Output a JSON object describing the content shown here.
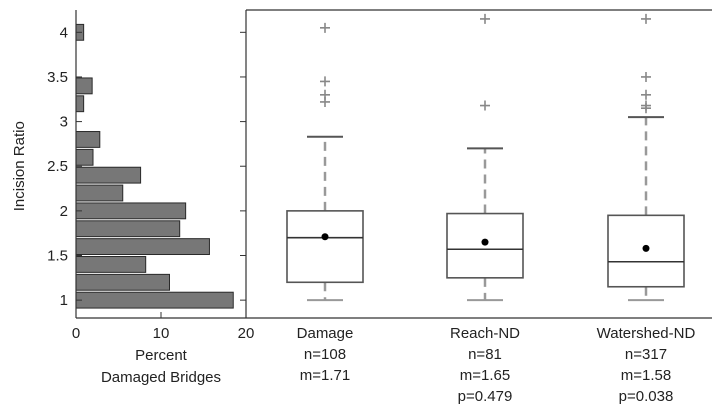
{
  "chart_data": [
    {
      "type": "bar",
      "orientation": "horizontal",
      "title": "",
      "xlabel_lines": [
        "Percent",
        "Damaged Bridges"
      ],
      "ylabel": "Incision Ratio",
      "xlim": [
        0,
        20
      ],
      "ylim": [
        0.8,
        4.25
      ],
      "xticks": [
        0,
        10,
        20
      ],
      "yticks": [
        1,
        1.5,
        2,
        2.5,
        3,
        3.5,
        4
      ],
      "ytick_labels": [
        "1",
        "1.5",
        "2",
        "2.5",
        "3",
        "3.5",
        "4"
      ],
      "bin_width": 0.2,
      "bins": [
        {
          "center": 1.0,
          "value": 18.5
        },
        {
          "center": 1.2,
          "value": 11.0
        },
        {
          "center": 1.4,
          "value": 8.2
        },
        {
          "center": 1.6,
          "value": 15.7
        },
        {
          "center": 1.8,
          "value": 12.2
        },
        {
          "center": 2.0,
          "value": 12.9
        },
        {
          "center": 2.2,
          "value": 5.5
        },
        {
          "center": 2.4,
          "value": 7.6
        },
        {
          "center": 2.6,
          "value": 2.0
        },
        {
          "center": 2.8,
          "value": 2.8
        },
        {
          "center": 3.2,
          "value": 0.9
        },
        {
          "center": 3.4,
          "value": 1.9
        },
        {
          "center": 4.0,
          "value": 0.9
        }
      ],
      "bar_color": "#777777"
    },
    {
      "type": "boxplot",
      "title": "",
      "ylim": [
        0.8,
        4.25
      ],
      "groups": [
        {
          "label_lines": [
            "Damage",
            "n=108",
            "m=1.71"
          ],
          "whisker_low": 1.0,
          "q1": 1.2,
          "median": 1.7,
          "q3": 2.0,
          "whisker_high": 2.83,
          "mean": 1.71,
          "outliers": [
            3.22,
            3.3,
            3.45,
            4.05
          ]
        },
        {
          "label_lines": [
            "Reach-ND",
            "n=81",
            "m=1.65",
            "p=0.479"
          ],
          "whisker_low": 1.0,
          "q1": 1.25,
          "median": 1.57,
          "q3": 1.97,
          "whisker_high": 2.7,
          "mean": 1.65,
          "outliers": [
            3.18,
            4.15
          ]
        },
        {
          "label_lines": [
            "Watershed-ND",
            "n=317",
            "m=1.58",
            "p=0.038"
          ],
          "whisker_low": 1.0,
          "q1": 1.15,
          "median": 1.43,
          "q3": 1.95,
          "whisker_high": 3.05,
          "mean": 1.58,
          "outliers": [
            3.15,
            3.18,
            3.3,
            3.5,
            4.15
          ]
        }
      ],
      "colors": {
        "box": "#555555",
        "whisker_dash": "#999999",
        "mean_marker": "#000000"
      }
    }
  ]
}
